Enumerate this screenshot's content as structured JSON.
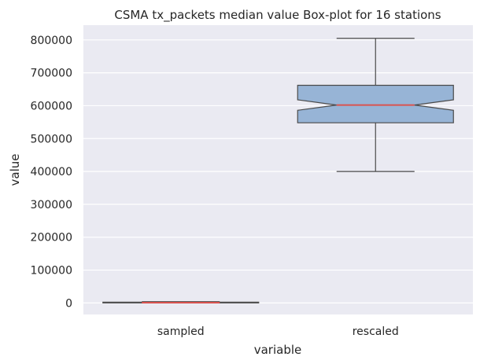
{
  "chart_data": {
    "type": "box",
    "title": "CSMA tx_packets median value Box-plot for 16 stations",
    "xlabel": "variable",
    "ylabel": "value",
    "categories": [
      "sampled",
      "rescaled"
    ],
    "ylim": [
      -35000,
      845000
    ],
    "yticks": [
      0,
      100000,
      200000,
      300000,
      400000,
      500000,
      600000,
      700000,
      800000
    ],
    "grid": true,
    "notched": true,
    "boxes": [
      {
        "category": "sampled",
        "whisker_low": 0,
        "q1": 200,
        "median": 1000,
        "q3": 2500,
        "whisker_high": 4000,
        "notch_low": 400,
        "notch_high": 1800
      },
      {
        "category": "rescaled",
        "whisker_low": 400000,
        "q1": 548000,
        "median": 602000,
        "q3": 662000,
        "whisker_high": 805000,
        "notch_low": 586000,
        "notch_high": 618000
      }
    ],
    "colors": {
      "background": "#EAEAF2",
      "grid": "#FFFFFF",
      "box_fill": "#97B4D6",
      "box_edge": "#4A4A4A",
      "median": "#D9534F"
    }
  }
}
